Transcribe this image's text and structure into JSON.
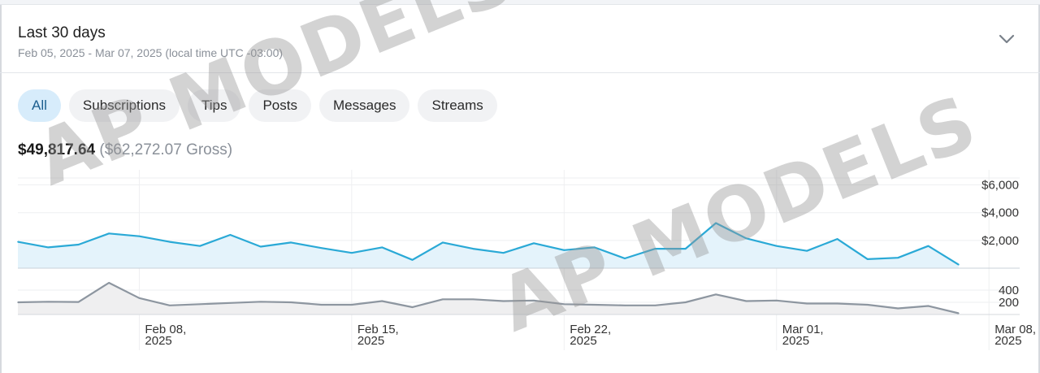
{
  "header": {
    "title": "Last 30 days",
    "subtitle": "Feb 05, 2025 - Mar 07, 2025 (local time UTC -03:00)",
    "chevron_icon": "chevron-down-icon"
  },
  "tabs": [
    {
      "label": "All",
      "active": true
    },
    {
      "label": "Subscriptions",
      "active": false
    },
    {
      "label": "Tips",
      "active": false
    },
    {
      "label": "Posts",
      "active": false
    },
    {
      "label": "Messages",
      "active": false
    },
    {
      "label": "Streams",
      "active": false
    }
  ],
  "totals": {
    "net": "$49,817.64",
    "gross": "($62,272.07 Gross)"
  },
  "watermark": {
    "text": "AP MODELS"
  },
  "colors": {
    "accent": "#2aa9d6",
    "accent_fill": "#e4f3fb",
    "secondary": "#8d96a0",
    "secondary_fill": "#efeff0"
  },
  "chart_data": [
    {
      "type": "area",
      "x": [
        "2025-02-04",
        "2025-02-05",
        "2025-02-06",
        "2025-02-07",
        "2025-02-08",
        "2025-02-09",
        "2025-02-10",
        "2025-02-11",
        "2025-02-12",
        "2025-02-13",
        "2025-02-14",
        "2025-02-15",
        "2025-02-16",
        "2025-02-17",
        "2025-02-18",
        "2025-02-19",
        "2025-02-20",
        "2025-02-21",
        "2025-02-22",
        "2025-02-23",
        "2025-02-24",
        "2025-02-25",
        "2025-02-26",
        "2025-02-27",
        "2025-02-28",
        "2025-03-01",
        "2025-03-02",
        "2025-03-03",
        "2025-03-04",
        "2025-03-05",
        "2025-03-06",
        "2025-03-07"
      ],
      "values": [
        1900,
        1500,
        1700,
        2500,
        2300,
        1900,
        1600,
        2400,
        1550,
        1850,
        1450,
        1100,
        1500,
        600,
        1850,
        1400,
        1100,
        1800,
        1300,
        1500,
        700,
        1400,
        1400,
        3250,
        2150,
        1600,
        1250,
        2100,
        650,
        750,
        1600,
        250
      ],
      "yticks": [
        2000,
        4000,
        6000
      ],
      "ytick_labels": [
        "$2,000",
        "$4,000",
        "$6,000"
      ],
      "ylim": [
        0,
        6500
      ],
      "grid": true
    },
    {
      "type": "area",
      "x": [
        "2025-02-04",
        "2025-02-05",
        "2025-02-06",
        "2025-02-07",
        "2025-02-08",
        "2025-02-09",
        "2025-02-10",
        "2025-02-11",
        "2025-02-12",
        "2025-02-13",
        "2025-02-14",
        "2025-02-15",
        "2025-02-16",
        "2025-02-17",
        "2025-02-18",
        "2025-02-19",
        "2025-02-20",
        "2025-02-21",
        "2025-02-22",
        "2025-02-23",
        "2025-02-24",
        "2025-02-25",
        "2025-02-26",
        "2025-02-27",
        "2025-02-28",
        "2025-03-01",
        "2025-03-02",
        "2025-03-03",
        "2025-03-04",
        "2025-03-05",
        "2025-03-06",
        "2025-03-07"
      ],
      "values": [
        200,
        210,
        205,
        520,
        270,
        150,
        170,
        190,
        210,
        200,
        160,
        160,
        220,
        120,
        250,
        250,
        220,
        230,
        170,
        160,
        150,
        150,
        200,
        330,
        220,
        230,
        180,
        180,
        160,
        100,
        140,
        20
      ],
      "yticks": [
        200,
        400
      ],
      "ytick_labels": [
        "200",
        "400"
      ],
      "ylim": [
        0,
        560
      ],
      "grid": true
    }
  ],
  "x_axis": {
    "ticks": [
      {
        "date": "2025-02-08",
        "line1": "Feb 08,",
        "line2": "2025"
      },
      {
        "date": "2025-02-15",
        "line1": "Feb 15,",
        "line2": "2025"
      },
      {
        "date": "2025-02-22",
        "line1": "Feb 22,",
        "line2": "2025"
      },
      {
        "date": "2025-03-01",
        "line1": "Mar 01,",
        "line2": "2025"
      },
      {
        "date": "2025-03-08",
        "line1": "Mar 08,",
        "line2": "2025"
      }
    ]
  }
}
